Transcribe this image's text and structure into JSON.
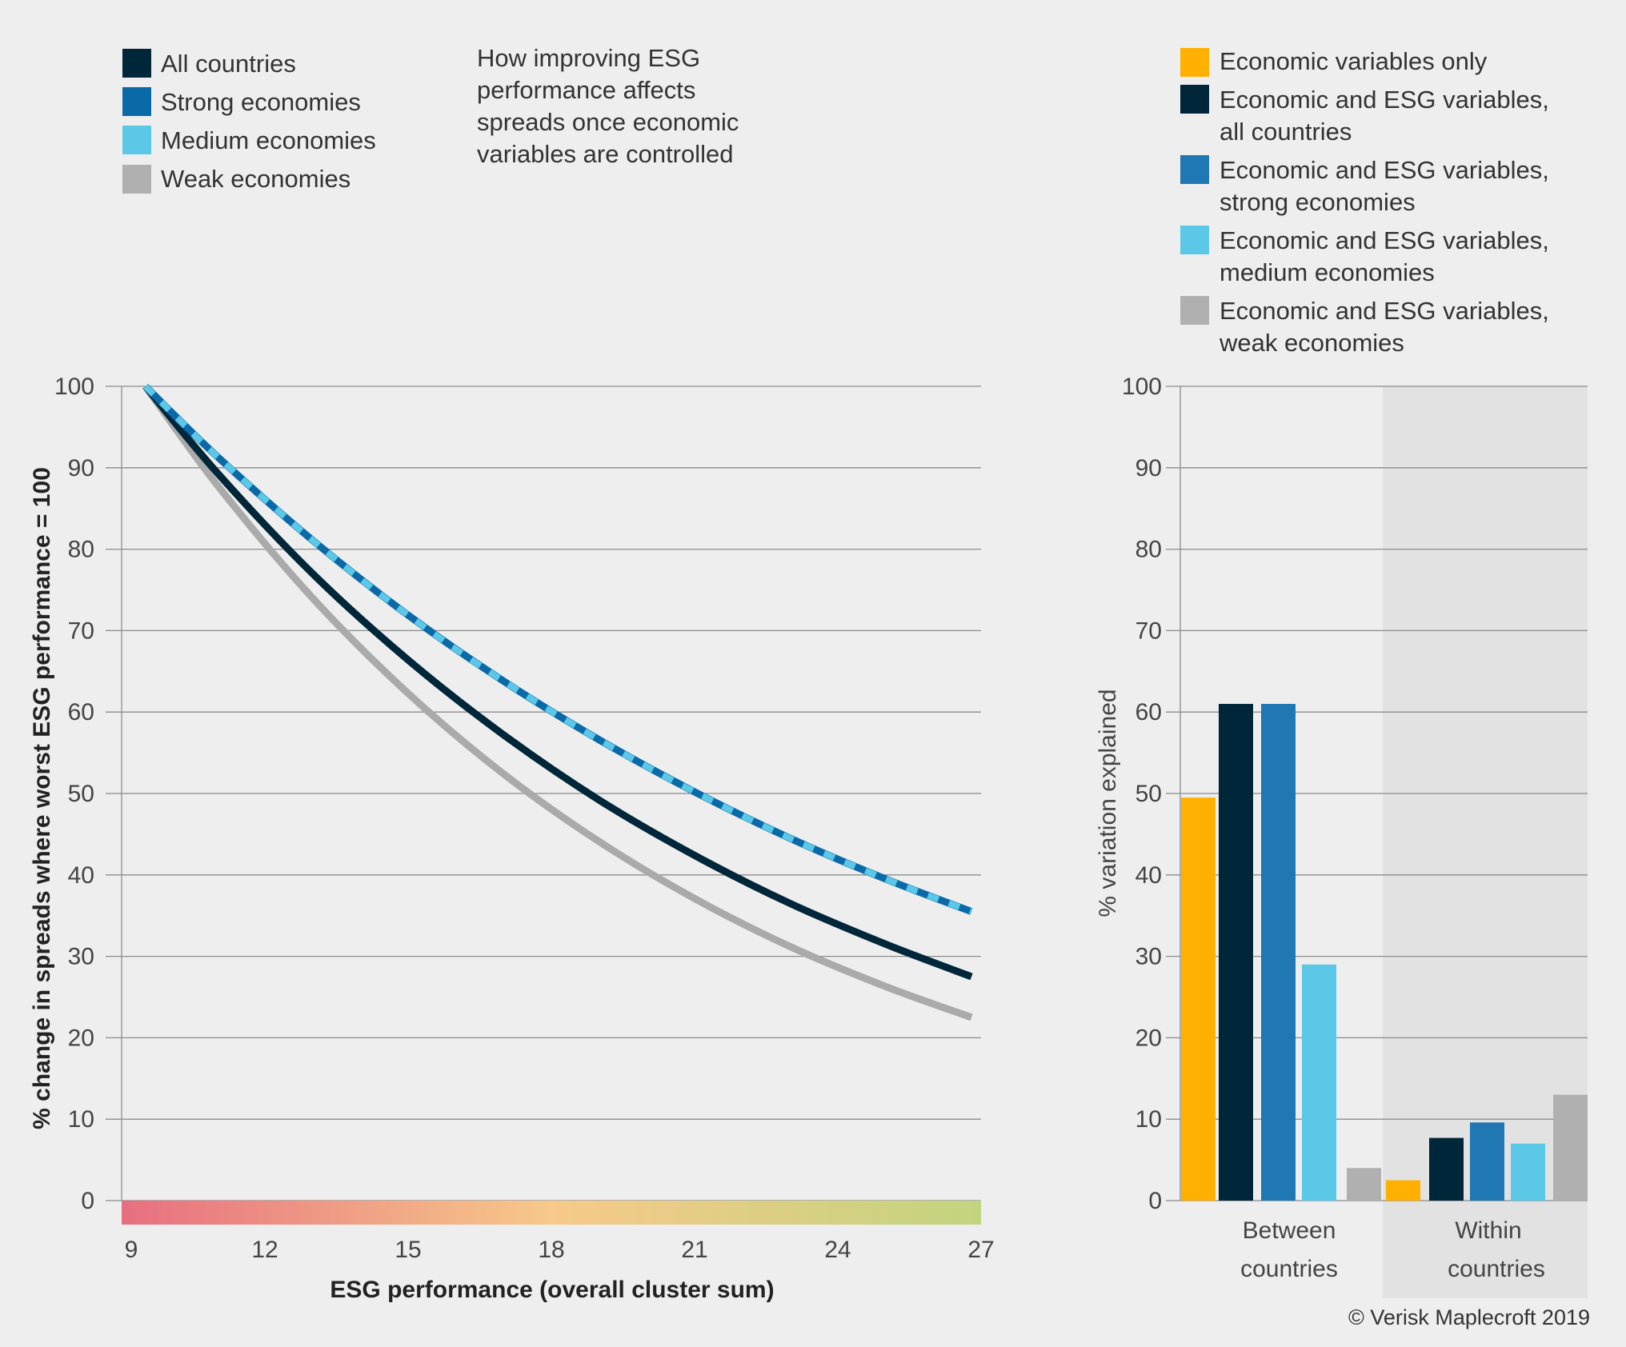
{
  "left_legend": [
    {
      "label": "All countries",
      "color": "#002639"
    },
    {
      "label": "Strong economies",
      "color": "#0a6aa8"
    },
    {
      "label": "Medium economies",
      "color": "#5bc8e8"
    },
    {
      "label": "Weak economies",
      "color": "#b0b0b0"
    }
  ],
  "subtitle_lines": [
    "How improving ESG",
    "performance affects",
    "spreads once economic",
    "variables are controlled"
  ],
  "right_legend": [
    {
      "lines": [
        "Economic variables only"
      ],
      "color": "#ffb000"
    },
    {
      "lines": [
        "Economic and ESG variables,",
        "all countries"
      ],
      "color": "#002639"
    },
    {
      "lines": [
        "Economic and ESG variables,",
        "strong economies"
      ],
      "color": "#1f77b4"
    },
    {
      "lines": [
        "Economic and ESG variables,",
        "medium economies"
      ],
      "color": "#5bc8e8"
    },
    {
      "lines": [
        "Economic and ESG variables,",
        "weak economies"
      ],
      "color": "#b0b0b0"
    }
  ],
  "copyright": "© Verisk Maplecroft 2019",
  "chart_data": [
    {
      "type": "line",
      "xlabel": "ESG performance (overall cluster sum)",
      "ylabel": "% change in spreads where worst ESG performance = 100",
      "xlim": [
        9,
        27
      ],
      "ylim": [
        0,
        100
      ],
      "xticks": [
        "9",
        "12",
        "15",
        "18",
        "21",
        "24",
        "27"
      ],
      "yticks": [
        "0",
        "10",
        "20",
        "30",
        "40",
        "50",
        "60",
        "70",
        "80",
        "90",
        "100"
      ],
      "grid": true,
      "x_axis_color_scale": [
        "#e76f80",
        "#f7c98a",
        "#c2d47f"
      ],
      "x": [
        9.5,
        11,
        13,
        15,
        17,
        19,
        21,
        23,
        25,
        26.8
      ],
      "series": [
        {
          "name": "Weak economies",
          "color": "#aaaaaa",
          "style": "solid",
          "values": [
            100,
            87.9,
            74.0,
            62.3,
            52.4,
            44.1,
            37.1,
            31.2,
            26.3,
            22.5
          ]
        },
        {
          "name": "All countries",
          "color": "#002639",
          "style": "solid",
          "values": [
            100,
            89.4,
            77.0,
            66.4,
            57.2,
            49.2,
            42.4,
            36.5,
            31.5,
            27.5
          ]
        },
        {
          "name": "Strong economies",
          "color": "#0a6aa8",
          "style": "solid",
          "values": [
            100,
            91.4,
            81.1,
            71.9,
            63.8,
            56.6,
            50.2,
            44.5,
            39.5,
            35.5
          ]
        },
        {
          "name": "Medium economies",
          "color": "#5bc8e8",
          "style": "dashed",
          "values": [
            100,
            91.4,
            81.1,
            71.9,
            63.8,
            56.6,
            50.2,
            44.5,
            39.5,
            35.5
          ]
        }
      ]
    },
    {
      "type": "bar",
      "ylabel": "% variation explained",
      "ylim": [
        0,
        100
      ],
      "yticks": [
        "0",
        "10",
        "20",
        "30",
        "40",
        "50",
        "60",
        "70",
        "80",
        "90",
        "100"
      ],
      "grid": true,
      "categories": [
        [
          "Between",
          "countries"
        ],
        [
          "Within",
          "countries"
        ]
      ],
      "series": [
        {
          "name": "Economic variables only",
          "color": "#ffb000",
          "values": [
            49.5,
            2.5
          ]
        },
        {
          "name": "Economic and ESG variables, all countries",
          "color": "#002639",
          "values": [
            61,
            7.7
          ]
        },
        {
          "name": "Economic and ESG variables, strong economies",
          "color": "#1f77b4",
          "values": [
            61,
            9.6
          ]
        },
        {
          "name": "Economic and ESG variables, medium economies",
          "color": "#5bc8e8",
          "values": [
            29,
            7
          ]
        },
        {
          "name": "Economic and ESG variables, weak economies",
          "color": "#b0b0b0",
          "values": [
            4,
            13
          ]
        }
      ]
    }
  ]
}
